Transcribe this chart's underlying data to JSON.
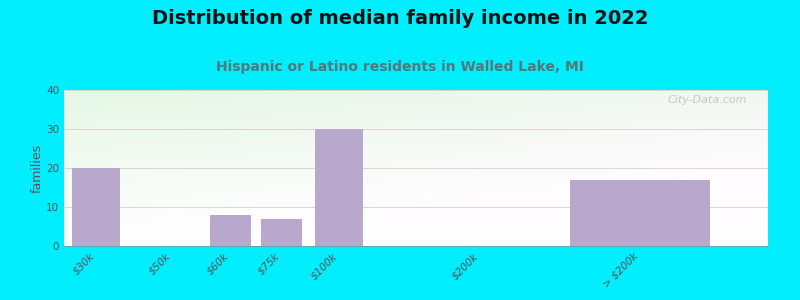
{
  "title": "Distribution of median family income in 2022",
  "subtitle": "Hispanic or Latino residents in Walled Lake, MI",
  "categories": [
    "$30k",
    "$50k",
    "$60k",
    "$75k",
    "$100k",
    "$200k",
    "> $200k"
  ],
  "values": [
    20,
    0,
    8,
    7,
    30,
    0,
    17
  ],
  "bar_color": "#b8a8cc",
  "ylim": [
    0,
    40
  ],
  "yticks": [
    0,
    10,
    20,
    30,
    40
  ],
  "ylabel": "families",
  "background_outer": "#00eeff",
  "bg_top_color": "#e8f5e0",
  "bg_bottom_color": "#f8fffc",
  "title_color": "#111111",
  "subtitle_color": "#557777",
  "watermark": "City-Data.com",
  "watermark_color": "#bbbbbb",
  "title_fontsize": 14,
  "subtitle_fontsize": 10,
  "tick_label_fontsize": 7.5,
  "ylabel_fontsize": 9
}
